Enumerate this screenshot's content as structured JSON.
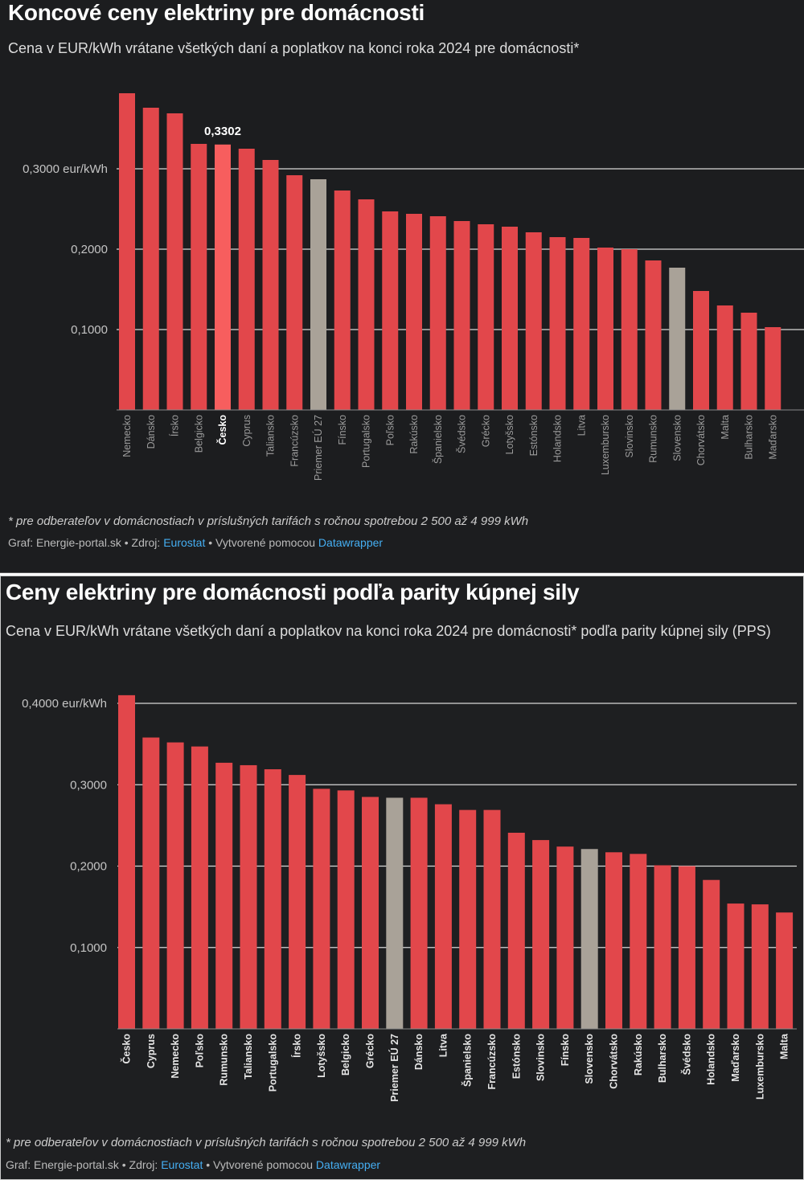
{
  "charts": [
    {
      "title": "Koncové ceny elektriny pre domácnosti",
      "subtitle": "Cena v EUR/kWh vrátane všetkých daní a poplatkov na konci roka 2024 pre domácnosti*",
      "note": "* pre odberateľov v domácnostiach v príslušných tarifách s ročnou spotrebou 2 500 až 4 999 kWh",
      "source": {
        "graf": "Graf: Energie-portal.sk",
        "zdroj": "• Zdroj:",
        "eurostat": "Eurostat",
        "vytvorene": "• Vytvorené pomocou",
        "datawrapper": "Datawrapper"
      }
    },
    {
      "title": "Ceny elektriny pre domácnosti podľa parity kúpnej sily",
      "subtitle": "Cena v EUR/kWh vrátane všetkých daní a poplatkov na konci roka 2024 pre domácnosti* podľa parity kúpnej sily (PPS)",
      "note": "* pre odberateľov v domácnostiach v príslušných tarifách s ročnou spotrebou 2 500 až 4 999 kWh",
      "source": {
        "graf": "Graf: Energie-portal.sk",
        "zdroj": "• Zdroj:",
        "eurostat": "Eurostat",
        "vytvorene": "• Vytvorené pomocou",
        "datawrapper": "Datawrapper"
      }
    }
  ],
  "colors": {
    "bar": "#e2474b",
    "highlight": "#f75e5e",
    "reference": "#a9a298",
    "grid": "#d8d8d8",
    "background": "#1c1d1f"
  },
  "chart_data": [
    {
      "type": "bar",
      "ylim": [
        0,
        0.4
      ],
      "grid": true,
      "yticks": [
        {
          "v": 0.1,
          "label": "0,1000"
        },
        {
          "v": 0.2,
          "label": "0,2000"
        },
        {
          "v": 0.3,
          "label": "0,3000 eur/kWh"
        }
      ],
      "categories": [
        "Nemecko",
        "Dánsko",
        "Írsko",
        "Belgicko",
        "Česko",
        "Cyprus",
        "Taliansko",
        "Francúzsko",
        "Priemer EÚ 27",
        "Fínsko",
        "Portugalsko",
        "Poľsko",
        "Rakúsko",
        "Španielsko",
        "Švédsko",
        "Grécko",
        "Lotyšsko",
        "Estónsko",
        "Holandsko",
        "Litva",
        "Luxembursko",
        "Slovinsko",
        "Rumunsko",
        "Slovensko",
        "Chorvátsko",
        "Malta",
        "Bulharsko",
        "Maďarsko"
      ],
      "values": [
        0.394,
        0.376,
        0.369,
        0.331,
        0.3302,
        0.325,
        0.311,
        0.292,
        0.287,
        0.273,
        0.262,
        0.247,
        0.244,
        0.241,
        0.235,
        0.231,
        0.228,
        0.221,
        0.215,
        0.214,
        0.202,
        0.2,
        0.186,
        0.177,
        0.148,
        0.13,
        0.121,
        0.103
      ],
      "highlight": "Česko",
      "highlight_label": "0,3302",
      "reference": [
        "Priemer EÚ 27",
        "Slovensko"
      ]
    },
    {
      "type": "bar",
      "ylim": [
        0,
        0.4
      ],
      "grid": true,
      "yticks": [
        {
          "v": 0.1,
          "label": "0,1000"
        },
        {
          "v": 0.2,
          "label": "0,2000"
        },
        {
          "v": 0.3,
          "label": "0,3000"
        },
        {
          "v": 0.4,
          "label": "0,4000 eur/kWh"
        }
      ],
      "categories": [
        "Česko",
        "Cyprus",
        "Nemecko",
        "Poľsko",
        "Rumunsko",
        "Taliansko",
        "Portugalsko",
        "Írsko",
        "Lotyšsko",
        "Belgicko",
        "Grécko",
        "Priemer EÚ 27",
        "Dánsko",
        "Litva",
        "Španielsko",
        "Francúzsko",
        "Estónsko",
        "Slovinsko",
        "Fínsko",
        "Slovensko",
        "Chorvátsko",
        "Rakúsko",
        "Bulharsko",
        "Švédsko",
        "Holandsko",
        "Maďarsko",
        "Luxembursko",
        "Malta"
      ],
      "values": [
        0.41,
        0.358,
        0.352,
        0.347,
        0.327,
        0.324,
        0.319,
        0.312,
        0.295,
        0.293,
        0.285,
        0.284,
        0.284,
        0.276,
        0.269,
        0.269,
        0.241,
        0.232,
        0.224,
        0.221,
        0.217,
        0.215,
        0.201,
        0.2,
        0.183,
        0.154,
        0.153,
        0.143
      ],
      "reference": [
        "Priemer EÚ 27",
        "Slovensko"
      ]
    }
  ]
}
